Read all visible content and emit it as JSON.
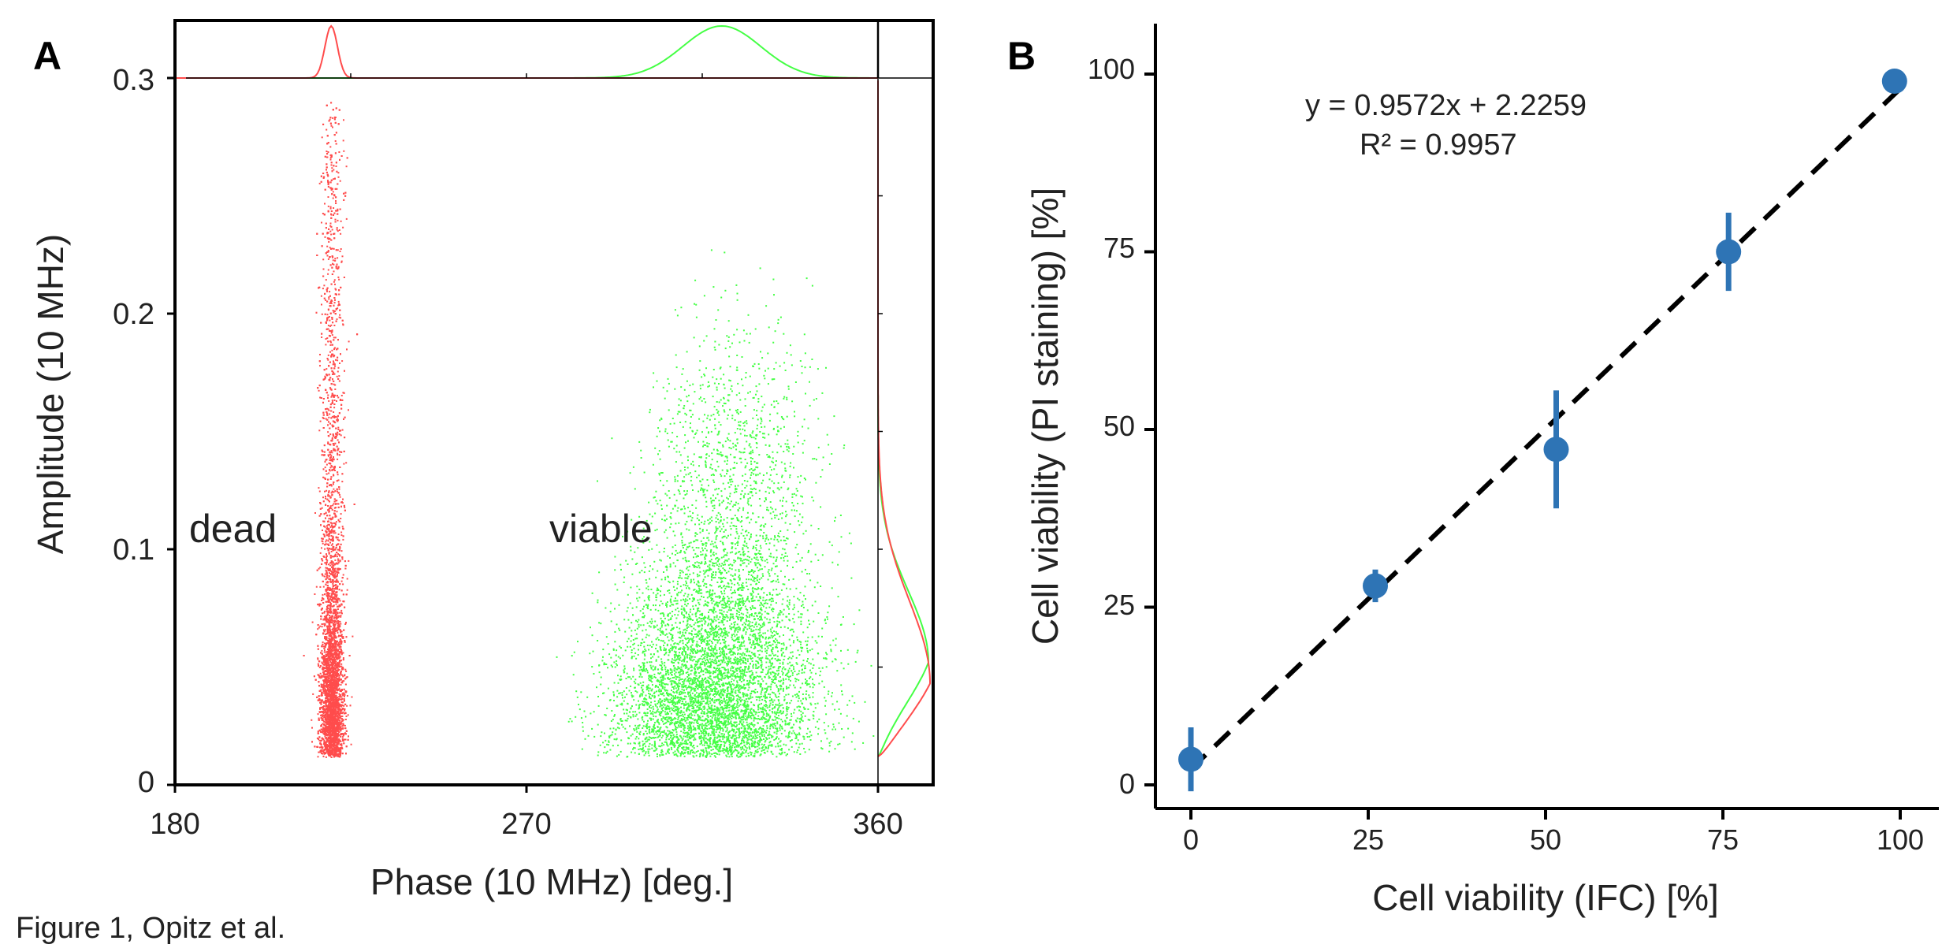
{
  "figure_caption": "Figure 1, Opitz et al.",
  "chart_data": [
    {
      "panel": "A",
      "type": "scatter",
      "xlabel": "Phase (10 MHz) [deg.]",
      "ylabel": "Amplitude (10 MHz)",
      "xlim": [
        180,
        360
      ],
      "ylim": [
        0,
        0.3
      ],
      "xticks": [
        "180",
        "270",
        "360"
      ],
      "yticks": [
        "0",
        "0.1",
        "0.2",
        "0.3"
      ],
      "annotations": [
        "dead",
        "viable"
      ],
      "grid": false,
      "marginal_histograms": [
        "top",
        "right"
      ],
      "series": [
        {
          "color": "#ff4c4c",
          "label_ref": "dead",
          "point_count": 14000,
          "x_center": 220,
          "x_spread": 1.5,
          "y_min": 0.012,
          "y_max": 0.29,
          "y_mode": 0.035
        },
        {
          "color": "#44ff44",
          "label_ref": "viable",
          "point_count": 16000,
          "x_center": 318,
          "x_spread": 11,
          "y_min": 0.012,
          "y_max": 0.29,
          "y_mode": 0.04
        }
      ]
    },
    {
      "panel": "B",
      "type": "scatter",
      "xlabel": "Cell viability (IFC) [%]",
      "ylabel": "Cell viability (PI staining)  [%]",
      "xlim": [
        -3,
        103
      ],
      "ylim": [
        -3,
        103
      ],
      "xticks": [
        "0",
        "25",
        "50",
        "75",
        "100"
      ],
      "yticks": [
        "0",
        "25",
        "50",
        "75",
        "100"
      ],
      "grid": false,
      "equation": "y = 0.9572x + 2.2259",
      "r_squared": "R² = 0.9957",
      "fit": {
        "slope": 0.9572,
        "intercept": 2.2259,
        "style": "dashed",
        "color": "#000000"
      },
      "series": [
        {
          "color": "#2e74b5",
          "x": [
            0,
            26,
            51.5,
            75.8,
            99.2
          ],
          "y": [
            3.6,
            28,
            47.2,
            75,
            99
          ],
          "yerr": [
            4.5,
            2.3,
            8.3,
            5.5,
            0.8
          ]
        }
      ]
    }
  ]
}
